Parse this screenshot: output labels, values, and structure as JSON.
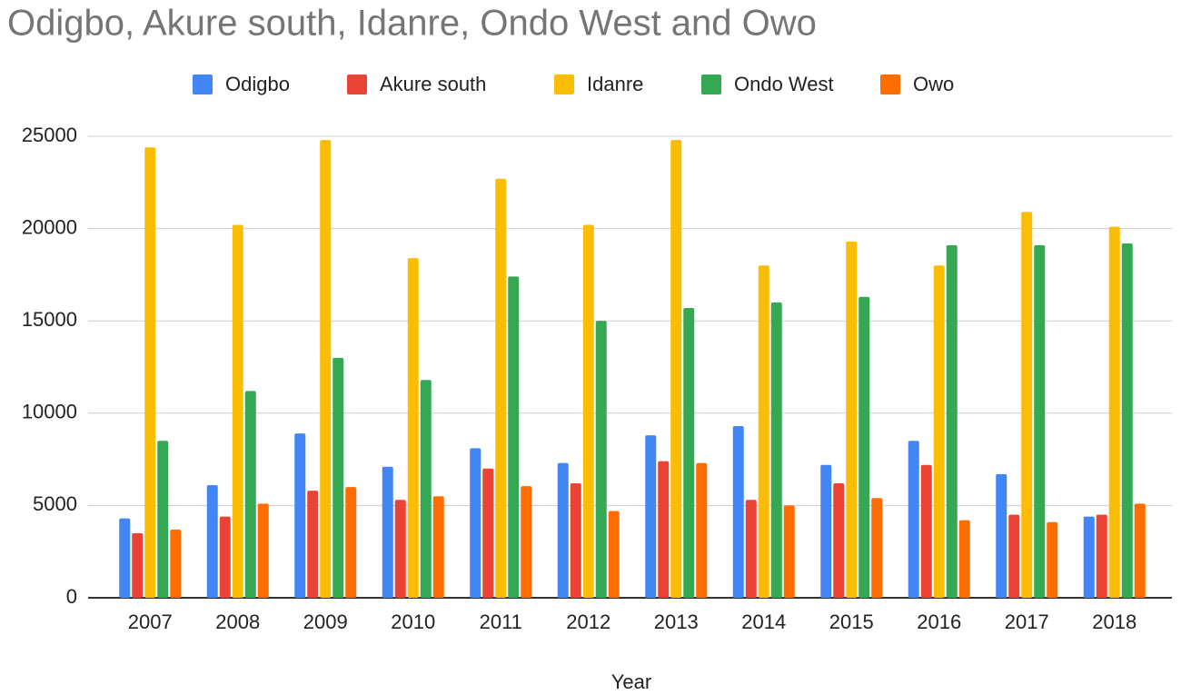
{
  "chart_data": {
    "type": "bar",
    "title": "Odigbo, Akure south, Idanre, Ondo West and Owo",
    "x_label": "Year",
    "categories": [
      "2007",
      "2008",
      "2009",
      "2010",
      "2011",
      "2012",
      "2013",
      "2014",
      "2015",
      "2016",
      "2017",
      "2018"
    ],
    "series": [
      {
        "name": "Odigbo",
        "color": "#4285f4",
        "values": [
          4300,
          6100,
          8900,
          7100,
          8100,
          7300,
          8800,
          9300,
          7200,
          8500,
          6700,
          4400
        ]
      },
      {
        "name": "Akure south",
        "color": "#ea4335",
        "values": [
          3500,
          4400,
          5800,
          5300,
          7000,
          6200,
          7400,
          5300,
          6200,
          7200,
          4500,
          4500
        ]
      },
      {
        "name": "Idanre",
        "color": "#fbbc04",
        "values": [
          24400,
          20200,
          24800,
          18400,
          22700,
          20200,
          24800,
          18000,
          19300,
          18000,
          20900,
          20100
        ]
      },
      {
        "name": "Ondo West",
        "color": "#34a853",
        "values": [
          8500,
          11200,
          13000,
          11800,
          17400,
          15000,
          15700,
          16000,
          16300,
          19100,
          19100,
          19200
        ]
      },
      {
        "name": "Owo",
        "color": "#ff6d01",
        "values": [
          3700,
          5100,
          6000,
          5500,
          6050,
          4700,
          7300,
          5000,
          5400,
          4200,
          4100,
          5100
        ]
      }
    ],
    "ylim": [
      0,
      25000
    ],
    "yticks": [
      0,
      5000,
      10000,
      15000,
      20000,
      25000
    ],
    "grid": true,
    "legend": "top"
  }
}
